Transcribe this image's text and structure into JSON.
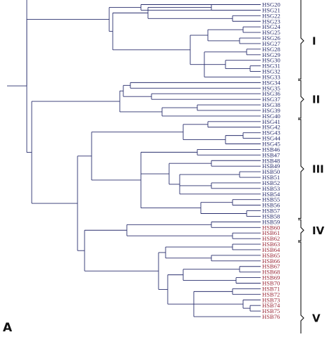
{
  "figure": {
    "panel_label": "A",
    "colors": {
      "branch": "#2a2f6e",
      "leaf_navy": "#2a2f6e",
      "leaf_red": "#9b2a3a",
      "bracket": "#111111"
    },
    "leaves": [
      {
        "label": "HSG20",
        "color": "navy"
      },
      {
        "label": "HSG21",
        "color": "navy"
      },
      {
        "label": "HSG22",
        "color": "navy"
      },
      {
        "label": "HSG23",
        "color": "navy"
      },
      {
        "label": "HSG24",
        "color": "navy"
      },
      {
        "label": "HSG25",
        "color": "navy"
      },
      {
        "label": "HSG26",
        "color": "navy"
      },
      {
        "label": "HSG27",
        "color": "navy"
      },
      {
        "label": "HSG28",
        "color": "navy"
      },
      {
        "label": "HSG29",
        "color": "navy"
      },
      {
        "label": "HSG30",
        "color": "navy"
      },
      {
        "label": "HSG31",
        "color": "navy"
      },
      {
        "label": "HSG32",
        "color": "navy"
      },
      {
        "label": "HSG33",
        "color": "navy"
      },
      {
        "label": "HSG34",
        "color": "navy"
      },
      {
        "label": "HSG35",
        "color": "navy"
      },
      {
        "label": "HSG36",
        "color": "navy"
      },
      {
        "label": "HSG37",
        "color": "navy"
      },
      {
        "label": "HSG38",
        "color": "navy"
      },
      {
        "label": "HSG39",
        "color": "navy"
      },
      {
        "label": "HSG40",
        "color": "navy"
      },
      {
        "label": "HSG41",
        "color": "navy"
      },
      {
        "label": "HSG42",
        "color": "navy"
      },
      {
        "label": "HSG43",
        "color": "navy"
      },
      {
        "label": "HSG44",
        "color": "navy"
      },
      {
        "label": "HSG45",
        "color": "navy"
      },
      {
        "label": "HSB46",
        "color": "navy"
      },
      {
        "label": "HSB47",
        "color": "navy"
      },
      {
        "label": "HSB48",
        "color": "navy"
      },
      {
        "label": "HSB49",
        "color": "navy"
      },
      {
        "label": "HSB50",
        "color": "navy"
      },
      {
        "label": "HSB51",
        "color": "navy"
      },
      {
        "label": "HSB52",
        "color": "navy"
      },
      {
        "label": "HSB53",
        "color": "navy"
      },
      {
        "label": "HSB54",
        "color": "navy"
      },
      {
        "label": "HSB55",
        "color": "navy"
      },
      {
        "label": "HSB56",
        "color": "navy"
      },
      {
        "label": "HSB57",
        "color": "navy"
      },
      {
        "label": "HSB58",
        "color": "navy"
      },
      {
        "label": "HSB59",
        "color": "navy"
      },
      {
        "label": "HSB60",
        "color": "red"
      },
      {
        "label": "HSB61",
        "color": "red"
      },
      {
        "label": "HSB62",
        "color": "red"
      },
      {
        "label": "HSB63",
        "color": "red"
      },
      {
        "label": "HSB64",
        "color": "red"
      },
      {
        "label": "HSB65",
        "color": "red"
      },
      {
        "label": "HSB66",
        "color": "red"
      },
      {
        "label": "HSB67",
        "color": "red"
      },
      {
        "label": "HSB68",
        "color": "red"
      },
      {
        "label": "HSB69",
        "color": "red"
      },
      {
        "label": "HSB70",
        "color": "red"
      },
      {
        "label": "HSB71",
        "color": "red"
      },
      {
        "label": "HSB72",
        "color": "red"
      },
      {
        "label": "HSB73",
        "color": "red"
      },
      {
        "label": "HSB74",
        "color": "red"
      },
      {
        "label": "HSB75",
        "color": "red"
      },
      {
        "label": "HSB76",
        "color": "red"
      }
    ],
    "clusters": [
      {
        "label": "I"
      },
      {
        "label": "II"
      },
      {
        "label": "III"
      },
      {
        "label": "IV"
      },
      {
        "label": "V"
      }
    ]
  }
}
